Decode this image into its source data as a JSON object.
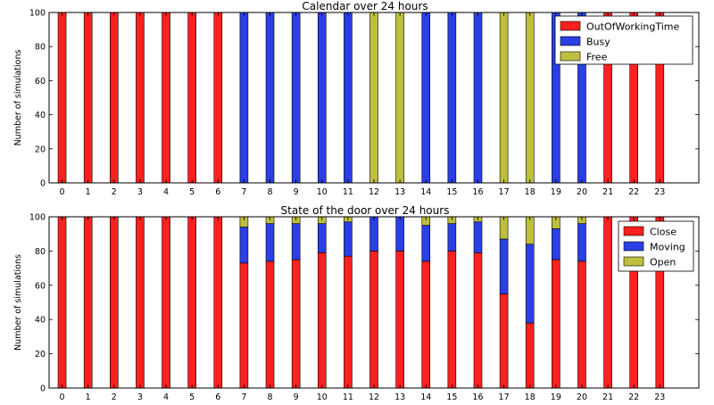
{
  "chart_data": [
    {
      "type": "bar",
      "stacked": true,
      "title": "Calendar over 24 hours",
      "xlabel": "",
      "ylabel": "Number of simulations",
      "ylim": [
        0,
        100
      ],
      "xlim": [
        -0.5,
        24.5
      ],
      "categories": [
        "0",
        "1",
        "2",
        "3",
        "4",
        "5",
        "6",
        "7",
        "8",
        "9",
        "10",
        "11",
        "12",
        "13",
        "14",
        "15",
        "16",
        "17",
        "18",
        "19",
        "20",
        "21",
        "22",
        "23"
      ],
      "yticks": [
        "0",
        "20",
        "40",
        "60",
        "80",
        "100"
      ],
      "legend_position": "top-right",
      "grid": false,
      "series": [
        {
          "name": "OutOfWorkingTime",
          "color": "#ff2020",
          "values": [
            100,
            100,
            100,
            100,
            100,
            100,
            100,
            0,
            0,
            0,
            0,
            0,
            0,
            0,
            0,
            0,
            0,
            0,
            0,
            0,
            0,
            100,
            100,
            100
          ]
        },
        {
          "name": "Busy",
          "color": "#2a3fe6",
          "values": [
            0,
            0,
            0,
            0,
            0,
            0,
            0,
            100,
            100,
            100,
            100,
            100,
            0,
            0,
            100,
            100,
            100,
            0,
            0,
            100,
            100,
            0,
            0,
            0
          ]
        },
        {
          "name": "Free",
          "color": "#bfbf3f",
          "values": [
            0,
            0,
            0,
            0,
            0,
            0,
            0,
            0,
            0,
            0,
            0,
            0,
            100,
            100,
            0,
            0,
            0,
            100,
            100,
            0,
            0,
            0,
            0,
            0
          ]
        }
      ]
    },
    {
      "type": "bar",
      "stacked": true,
      "title": "State of the door over 24 hours",
      "xlabel": "",
      "ylabel": "Number of simulations",
      "ylim": [
        0,
        100
      ],
      "xlim": [
        -0.5,
        24.5
      ],
      "categories": [
        "0",
        "1",
        "2",
        "3",
        "4",
        "5",
        "6",
        "7",
        "8",
        "9",
        "10",
        "11",
        "12",
        "13",
        "14",
        "15",
        "16",
        "17",
        "18",
        "19",
        "20",
        "21",
        "22",
        "23"
      ],
      "yticks": [
        "0",
        "20",
        "40",
        "60",
        "80",
        "100"
      ],
      "legend_position": "top-right",
      "grid": false,
      "series": [
        {
          "name": "Close",
          "color": "#ff2020",
          "values": [
            100,
            100,
            100,
            100,
            100,
            100,
            100,
            73,
            74,
            75,
            79,
            77,
            80,
            80,
            74,
            80,
            79,
            55,
            38,
            75,
            74,
            100,
            100,
            100
          ]
        },
        {
          "name": "Moving",
          "color": "#2a3fe6",
          "values": [
            0,
            0,
            0,
            0,
            0,
            0,
            0,
            21,
            22,
            21,
            17,
            20,
            20,
            20,
            21,
            16,
            18,
            32,
            46,
            18,
            22,
            0,
            0,
            0
          ]
        },
        {
          "name": "Open",
          "color": "#bfbf3f",
          "values": [
            0,
            0,
            0,
            0,
            0,
            0,
            0,
            6,
            4,
            4,
            4,
            3,
            0,
            0,
            5,
            4,
            3,
            13,
            16,
            7,
            4,
            0,
            0,
            0
          ]
        }
      ]
    }
  ]
}
